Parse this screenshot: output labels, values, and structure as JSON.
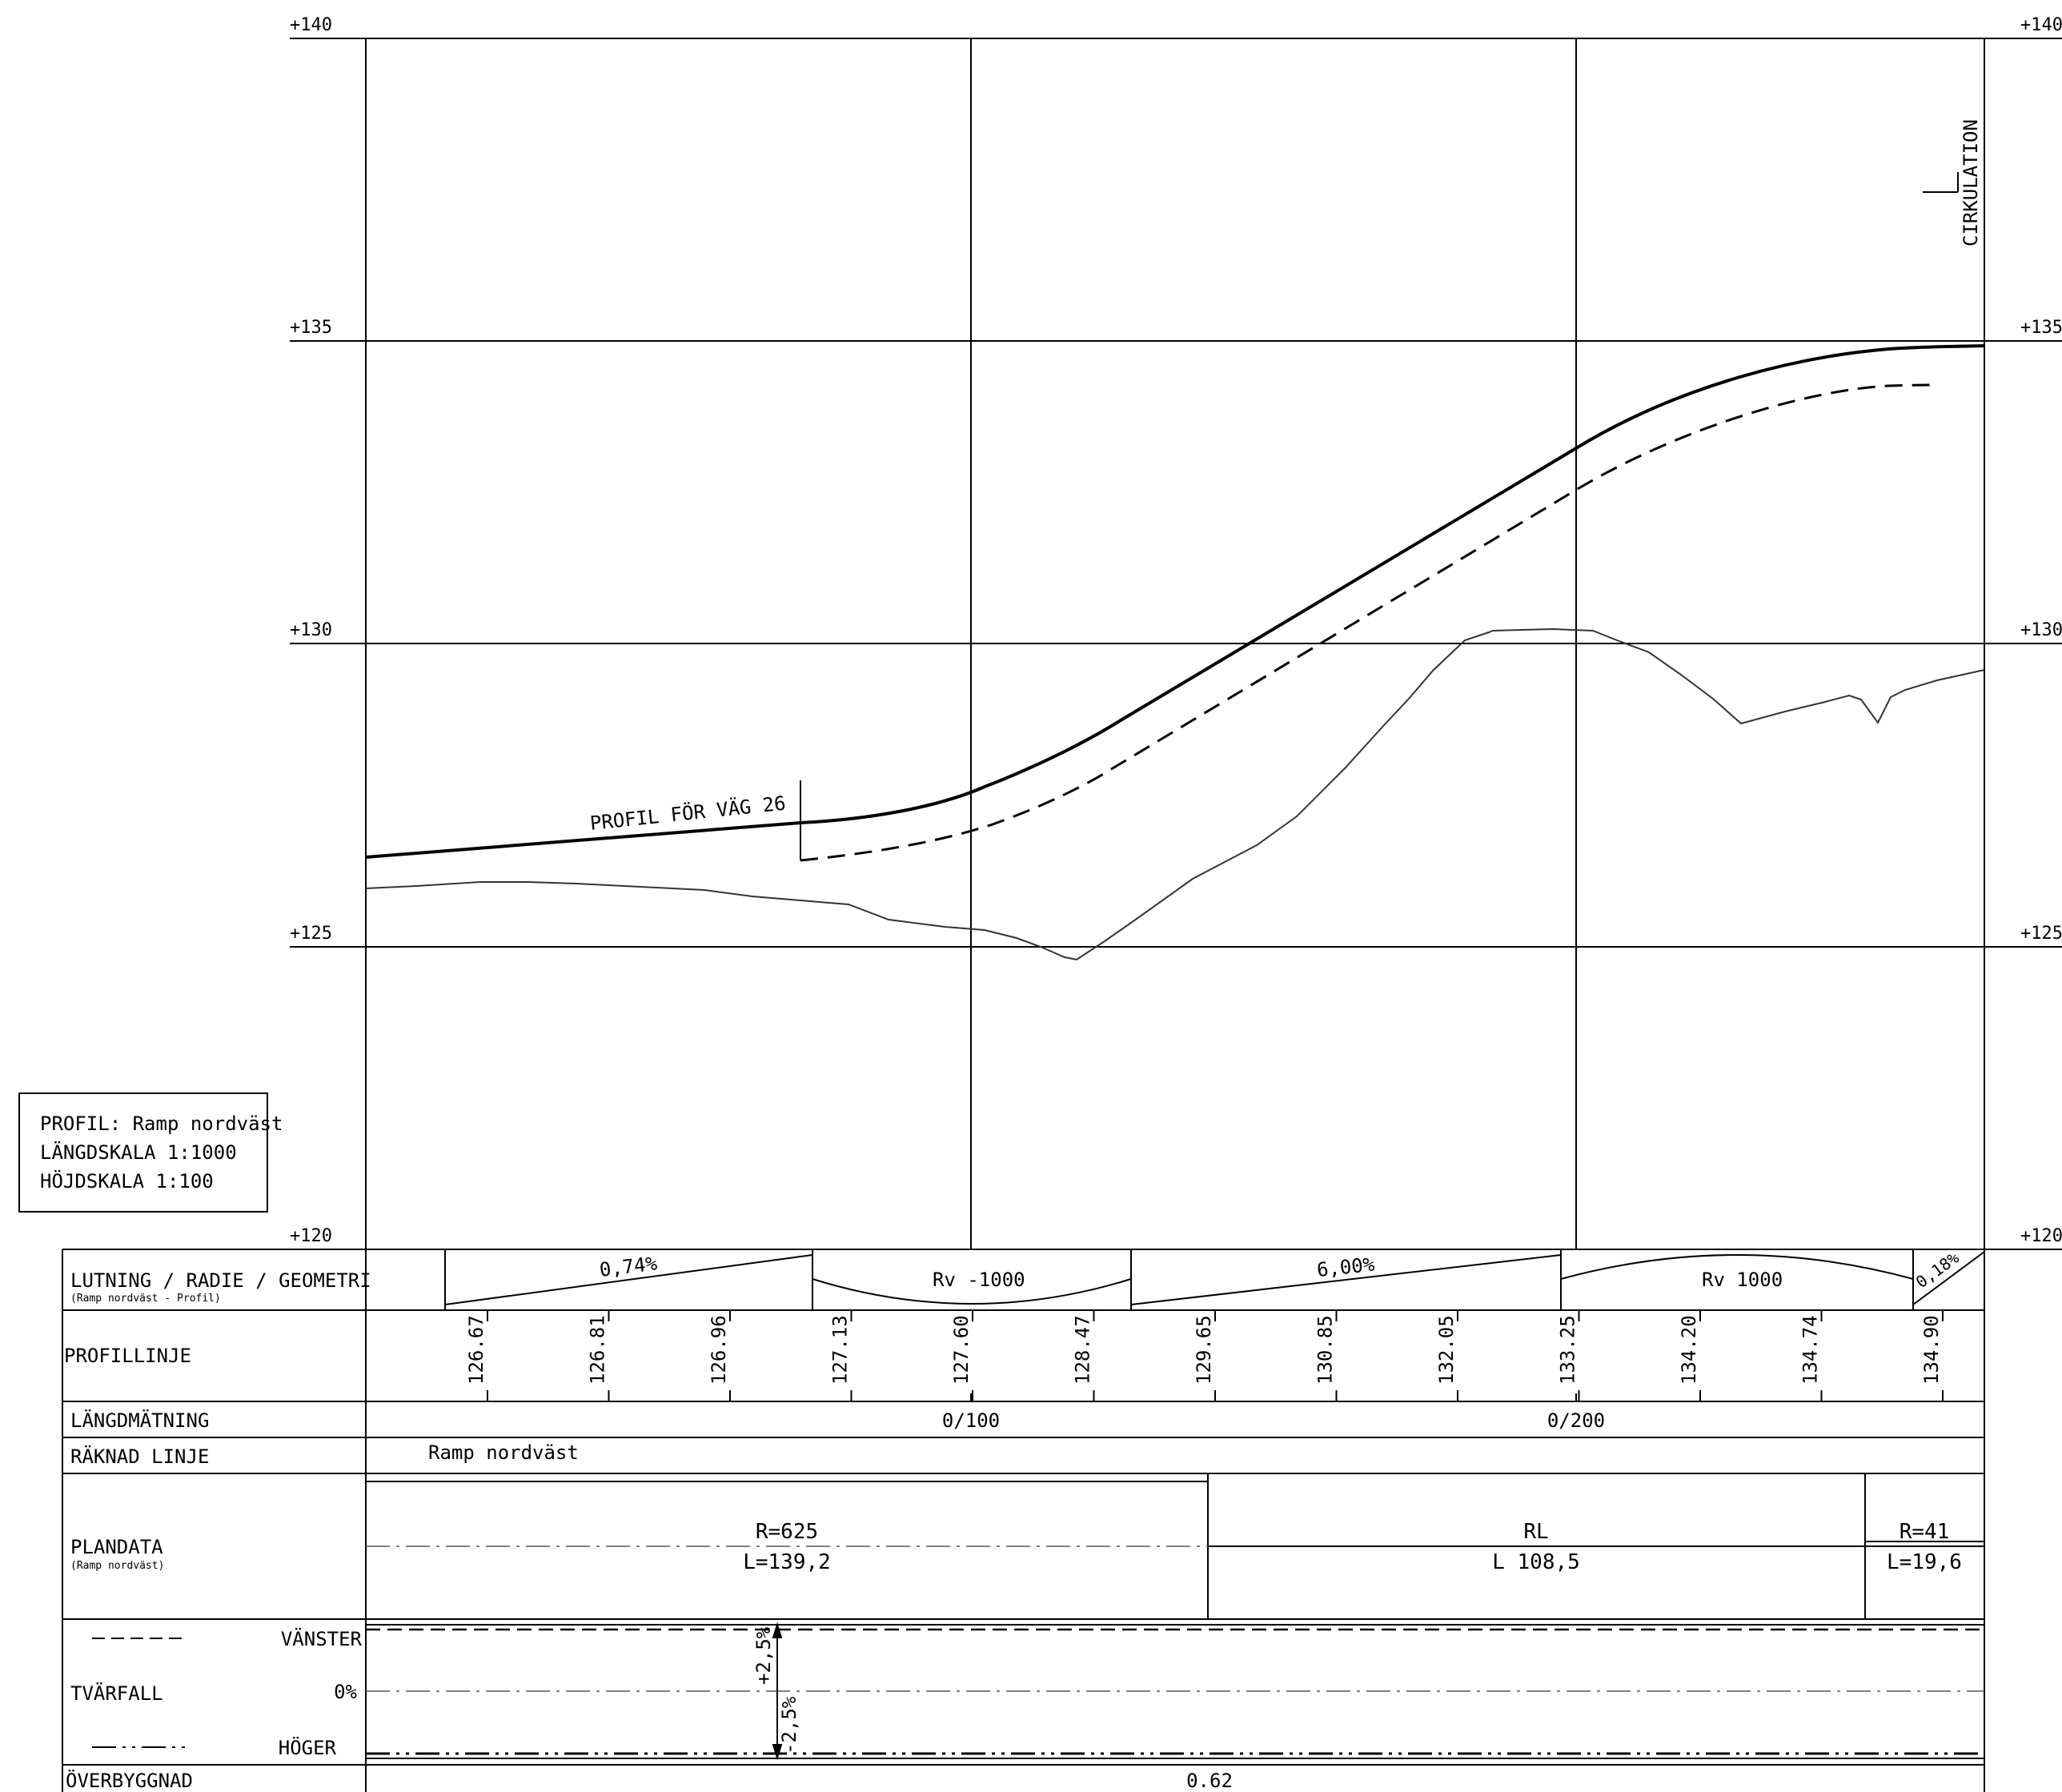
{
  "elevation_labels": [
    "+140",
    "+135",
    "+130",
    "+125",
    "+120"
  ],
  "profile": {
    "road_label": "PROFIL FÖR VÄG 26",
    "circulation_label": "CIRKULATION"
  },
  "title_box": {
    "line1": "PROFIL: Ramp nordväst",
    "line2": "LÄNGDSKALA 1:1000",
    "line3": "HÖJDSKALA 1:100"
  },
  "rows": {
    "lutning": {
      "label": "LUTNING / RADIE / GEOMETRI",
      "sublabel": "(Ramp nordväst - Profil)",
      "segments": [
        "0,74%",
        "Rv -1000",
        "6,00%",
        "Rv 1000",
        "0,18%"
      ]
    },
    "profillinje": {
      "label": "PROFILLINJE",
      "values": [
        "126.67",
        "126.81",
        "126.96",
        "127.13",
        "127.60",
        "128.47",
        "129.65",
        "130.85",
        "132.05",
        "133.25",
        "134.20",
        "134.74",
        "134.90"
      ]
    },
    "langdmatning": {
      "label": "LÄNGDMÄTNING",
      "stations": [
        "0/100",
        "0/200"
      ]
    },
    "raknad_linje": {
      "label": "RÄKNAD LINJE",
      "value": "Ramp nordväst"
    },
    "plandata": {
      "label": "PLANDATA",
      "sublabel": "(Ramp nordväst)",
      "seg1_r": "R=625",
      "seg1_l": "L=139,2",
      "seg2_r": "RL",
      "seg2_l": "L 108,5",
      "seg3_r": "R=41",
      "seg3_l": "L=19,6"
    },
    "tvarfall": {
      "label": "TVÄRFALL",
      "left_label": "VÄNSTER",
      "zero_label": "0%",
      "right_label": "HÖGER",
      "up_value": "+2,5%",
      "down_value": "-2,5%"
    },
    "overbyggnad": {
      "label": "ÖVERBYGGNAD",
      "value": "0.62"
    }
  }
}
